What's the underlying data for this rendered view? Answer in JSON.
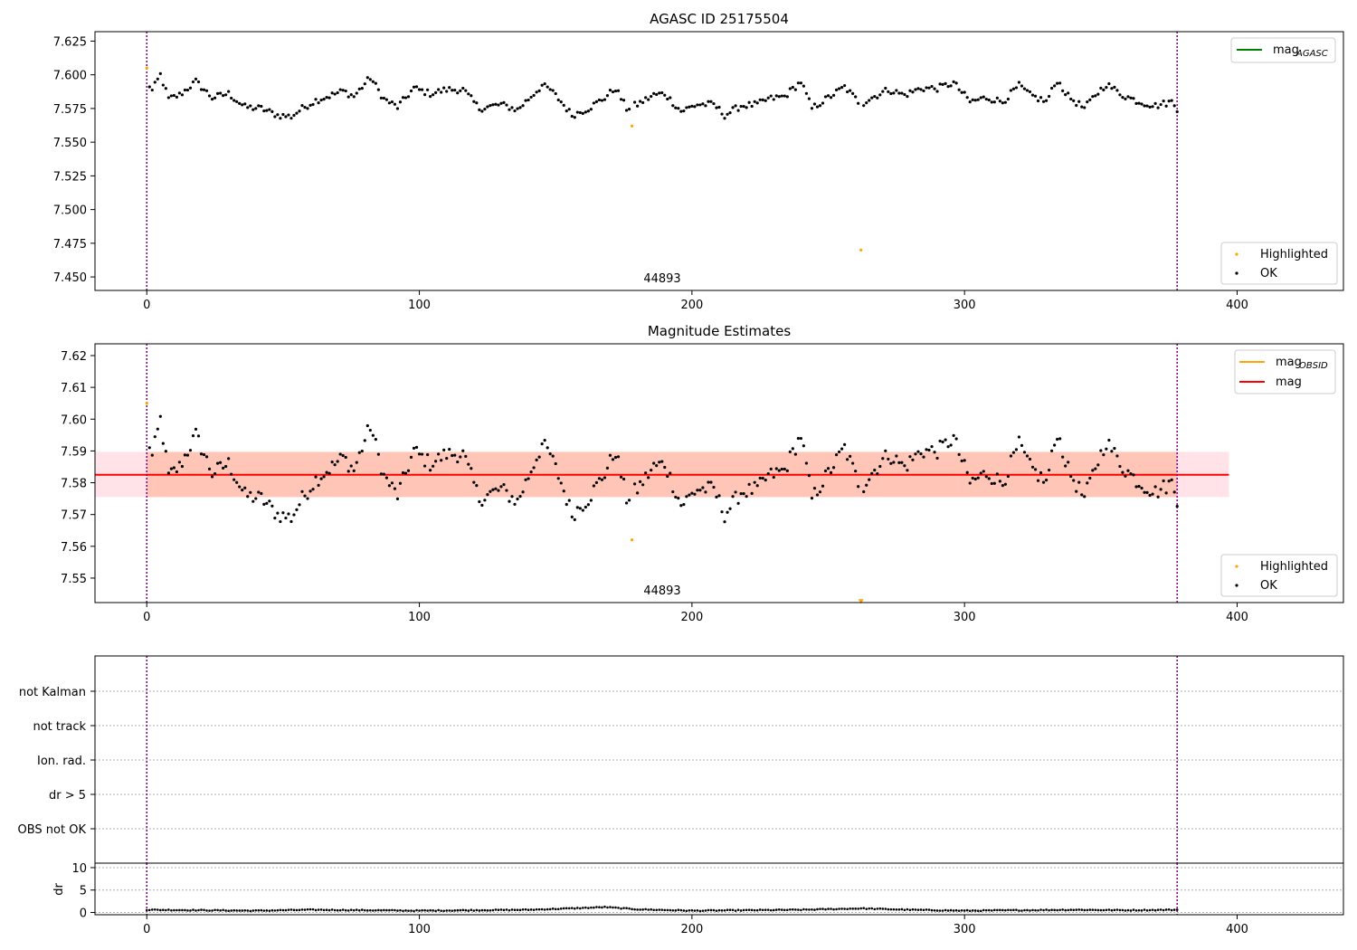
{
  "colors": {
    "ok": "#000000",
    "highlighted": "#ffa500",
    "mag_agasc": "#008000",
    "mag_obsid": "#ffa500",
    "mag": "#ff0000",
    "obs_boundary": "#800080",
    "band_outer": "#ffc0cb",
    "band_inner": "#ffa07a"
  },
  "chart_data": [
    {
      "type": "scatter",
      "title": "AGASC ID 25175504",
      "xlim": [
        -19,
        439
      ],
      "ylim": [
        7.44,
        7.632
      ],
      "yticks": [
        "7.450",
        "7.475",
        "7.500",
        "7.525",
        "7.550",
        "7.575",
        "7.600",
        "7.625"
      ],
      "ytick_values": [
        7.45,
        7.475,
        7.5,
        7.525,
        7.55,
        7.575,
        7.6,
        7.625
      ],
      "xticks": [
        "0",
        "100",
        "200",
        "300",
        "400"
      ],
      "xtick_values": [
        0,
        100,
        200,
        300,
        400
      ],
      "obsid_label": "44893",
      "obs_boundaries": [
        0,
        378
      ],
      "legend_lines": [
        {
          "label": "mag",
          "sub": "AGASC"
        }
      ],
      "legend_points": [
        {
          "label": "Highlighted"
        },
        {
          "label": "OK"
        }
      ],
      "highlighted": [
        [
          0,
          7.605
        ],
        [
          178,
          7.562
        ],
        [
          262,
          7.47
        ]
      ],
      "ok_series": {
        "n": 379,
        "anchors": [
          [
            0,
            7.596
          ],
          [
            2,
            7.588
          ],
          [
            5,
            7.6
          ],
          [
            8,
            7.582
          ],
          [
            12,
            7.585
          ],
          [
            18,
            7.595
          ],
          [
            24,
            7.583
          ],
          [
            30,
            7.586
          ],
          [
            36,
            7.576
          ],
          [
            42,
            7.575
          ],
          [
            48,
            7.57
          ],
          [
            53,
            7.569
          ],
          [
            57,
            7.575
          ],
          [
            62,
            7.581
          ],
          [
            68,
            7.585
          ],
          [
            72,
            7.588
          ],
          [
            76,
            7.584
          ],
          [
            82,
            7.598
          ],
          [
            87,
            7.582
          ],
          [
            92,
            7.576
          ],
          [
            98,
            7.59
          ],
          [
            104,
            7.586
          ],
          [
            110,
            7.589
          ],
          [
            116,
            7.589
          ],
          [
            122,
            7.575
          ],
          [
            130,
            7.578
          ],
          [
            136,
            7.574
          ],
          [
            140,
            7.582
          ],
          [
            145,
            7.592
          ],
          [
            148,
            7.589
          ],
          [
            152,
            7.58
          ],
          [
            156,
            7.57
          ],
          [
            162,
            7.575
          ],
          [
            168,
            7.583
          ],
          [
            172,
            7.59
          ],
          [
            176,
            7.575
          ],
          [
            180,
            7.578
          ],
          [
            186,
            7.585
          ],
          [
            190,
            7.586
          ],
          [
            196,
            7.573
          ],
          [
            202,
            7.578
          ],
          [
            208,
            7.578
          ],
          [
            212,
            7.57
          ],
          [
            218,
            7.577
          ],
          [
            224,
            7.578
          ],
          [
            228,
            7.582
          ],
          [
            234,
            7.584
          ],
          [
            240,
            7.595
          ],
          [
            244,
            7.575
          ],
          [
            250,
            7.583
          ],
          [
            256,
            7.591
          ],
          [
            262,
            7.578
          ],
          [
            266,
            7.583
          ],
          [
            272,
            7.589
          ],
          [
            278,
            7.585
          ],
          [
            284,
            7.59
          ],
          [
            290,
            7.59
          ],
          [
            296,
            7.594
          ],
          [
            302,
            7.58
          ],
          [
            308,
            7.583
          ],
          [
            314,
            7.58
          ],
          [
            320,
            7.592
          ],
          [
            324,
            7.585
          ],
          [
            330,
            7.58
          ],
          [
            334,
            7.596
          ],
          [
            338,
            7.584
          ],
          [
            344,
            7.575
          ],
          [
            348,
            7.585
          ],
          [
            352,
            7.593
          ],
          [
            358,
            7.585
          ],
          [
            364,
            7.58
          ],
          [
            370,
            7.577
          ],
          [
            376,
            7.58
          ],
          [
            378,
            7.575
          ]
        ]
      }
    },
    {
      "type": "scatter",
      "title": "Magnitude Estimates",
      "xlim": [
        -19,
        439
      ],
      "ylim": [
        7.5423,
        7.6237
      ],
      "yticks": [
        "7.55",
        "7.56",
        "7.57",
        "7.58",
        "7.59",
        "7.60",
        "7.61",
        "7.62"
      ],
      "ytick_values": [
        7.55,
        7.56,
        7.57,
        7.58,
        7.59,
        7.6,
        7.61,
        7.62
      ],
      "xticks": [
        "0",
        "100",
        "200",
        "300",
        "400"
      ],
      "xtick_values": [
        0,
        100,
        200,
        300,
        400
      ],
      "obsid_label": "44893",
      "obs_boundaries": [
        0,
        378
      ],
      "mag_level": 7.5825,
      "mag_range": [
        -19,
        397
      ],
      "band_outer": [
        7.5755,
        7.5897
      ],
      "band_inner": [
        7.5755,
        7.5897
      ],
      "legend_lines": [
        {
          "label": "mag",
          "sub": "OBSID"
        },
        {
          "label": "mag",
          "sub": ""
        }
      ],
      "legend_points": [
        {
          "label": "Highlighted"
        },
        {
          "label": "OK"
        }
      ],
      "highlighted": [
        [
          0,
          7.605
        ],
        [
          178,
          7.562
        ]
      ],
      "out_of_range_marker": [
        262,
        7.5425
      ],
      "ok_series_ref": 0
    },
    {
      "type": "scatter",
      "title": "",
      "flag_labels": [
        "OBS not OK",
        "dr > 5",
        "Ion. rad.",
        "not track",
        "not Kalman"
      ],
      "dr_panel": {
        "ylabel": "dr",
        "yticks": [
          "0",
          "5",
          "10"
        ],
        "ytick_values": [
          0,
          5,
          10
        ],
        "ylim": [
          -0.5,
          11
        ],
        "dr_anchors": [
          [
            0,
            0.6
          ],
          [
            20,
            0.5
          ],
          [
            40,
            0.4
          ],
          [
            60,
            0.6
          ],
          [
            80,
            0.5
          ],
          [
            100,
            0.4
          ],
          [
            120,
            0.5
          ],
          [
            140,
            0.6
          ],
          [
            160,
            1.0
          ],
          [
            168,
            1.2
          ],
          [
            180,
            0.7
          ],
          [
            200,
            0.4
          ],
          [
            220,
            0.5
          ],
          [
            240,
            0.6
          ],
          [
            262,
            0.9
          ],
          [
            280,
            0.6
          ],
          [
            300,
            0.4
          ],
          [
            320,
            0.5
          ],
          [
            340,
            0.6
          ],
          [
            360,
            0.5
          ],
          [
            378,
            0.6
          ]
        ]
      },
      "xticks": [
        "0",
        "100",
        "200",
        "300",
        "400"
      ],
      "xtick_values": [
        0,
        100,
        200,
        300,
        400
      ],
      "xlim": [
        -19,
        439
      ],
      "obs_boundaries": [
        0,
        378
      ]
    }
  ]
}
